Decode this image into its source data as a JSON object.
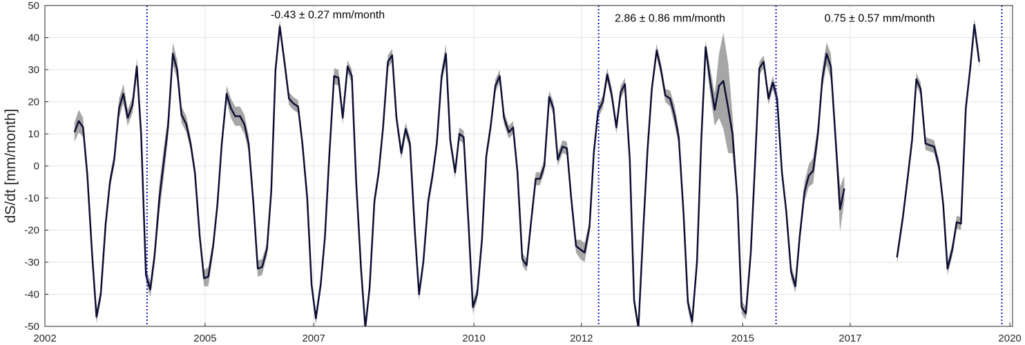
{
  "chart_data": {
    "type": "line",
    "xlabel": "",
    "ylabel": "dS/dt [mm/month]",
    "xlim": [
      2002,
      2020
    ],
    "ylim": [
      -50,
      50
    ],
    "x_ticks": [
      {
        "value": 2002.0,
        "label": "2002"
      },
      {
        "value": 2004.98,
        "label": "2005"
      },
      {
        "value": 2007.0,
        "label": "2007"
      },
      {
        "value": 2009.98,
        "label": "2010"
      },
      {
        "value": 2011.98,
        "label": "2012"
      },
      {
        "value": 2014.98,
        "label": "2015"
      },
      {
        "value": 2016.98,
        "label": "2017"
      },
      {
        "value": 2019.95,
        "label": "2020"
      }
    ],
    "y_ticks": [
      -50,
      -40,
      -30,
      -20,
      -10,
      0,
      10,
      20,
      30,
      40,
      50
    ],
    "grid": true,
    "legend": "none",
    "colors": {
      "line": "#0d0d33",
      "band": "#a6a6a6",
      "breakpoint": "#1010c8"
    },
    "breakpoints": [
      2003.9,
      2012.3,
      2015.6,
      2019.8
    ],
    "annotations": [
      {
        "text": "-0.43 ± 0.27 mm/month",
        "x": 2006.2,
        "y": 46
      },
      {
        "text": "2.86 ± 0.86 mm/month",
        "x": 2012.6,
        "y": 45
      },
      {
        "text": "0.75 ± 0.57 mm/month",
        "x": 2016.5,
        "y": 45
      }
    ],
    "series": [
      {
        "values": [
          [
            2002.55,
            10.5,
            3.0
          ],
          [
            2002.63,
            14.0,
            3.5
          ],
          [
            2002.71,
            12.0,
            3.0
          ],
          [
            2002.79,
            -3.0,
            2.0
          ],
          [
            2002.88,
            -28.0,
            2.0
          ],
          [
            2002.96,
            -47.0,
            2.0
          ],
          [
            2003.04,
            -40.0,
            2.0
          ],
          [
            2003.13,
            -18.0,
            2.0
          ],
          [
            2003.21,
            -5.0,
            2.0
          ],
          [
            2003.29,
            2.0,
            2.0
          ],
          [
            2003.38,
            18.0,
            3.0
          ],
          [
            2003.46,
            22.5,
            3.0
          ],
          [
            2003.54,
            15.0,
            2.5
          ],
          [
            2003.63,
            19.0,
            2.5
          ],
          [
            2003.71,
            31.0,
            2.5
          ],
          [
            2003.79,
            10.0,
            2.0
          ],
          [
            2003.88,
            -34.0,
            2.0
          ],
          [
            2003.96,
            -38.5,
            2.5
          ],
          [
            2004.04,
            -28.0,
            2.5
          ],
          [
            2004.13,
            -10.0,
            4.5
          ],
          [
            2004.21,
            1.0,
            4.5
          ],
          [
            2004.29,
            12.0,
            3.5
          ],
          [
            2004.38,
            35.0,
            3.5
          ],
          [
            2004.46,
            30.0,
            3.0
          ],
          [
            2004.54,
            16.0,
            2.5
          ],
          [
            2004.63,
            13.0,
            2.5
          ],
          [
            2004.71,
            7.0,
            2.0
          ],
          [
            2004.79,
            -2.0,
            2.0
          ],
          [
            2004.88,
            -22.0,
            2.0
          ],
          [
            2004.96,
            -35.0,
            2.5
          ],
          [
            2005.04,
            -34.5,
            3.0
          ],
          [
            2005.13,
            -25.0,
            2.0
          ],
          [
            2005.21,
            -12.0,
            2.0
          ],
          [
            2005.29,
            7.0,
            2.0
          ],
          [
            2005.38,
            22.5,
            2.5
          ],
          [
            2005.46,
            18.0,
            3.0
          ],
          [
            2005.54,
            15.5,
            3.0
          ],
          [
            2005.63,
            15.5,
            3.0
          ],
          [
            2005.71,
            13.0,
            3.0
          ],
          [
            2005.79,
            7.0,
            2.5
          ],
          [
            2005.88,
            -12.0,
            2.0
          ],
          [
            2005.96,
            -32.0,
            2.5
          ],
          [
            2006.04,
            -31.5,
            2.5
          ],
          [
            2006.13,
            -26.0,
            2.0
          ],
          [
            2006.21,
            -8.0,
            2.0
          ],
          [
            2006.29,
            30.0,
            2.0
          ],
          [
            2006.37,
            43.5,
            2.0
          ],
          [
            2006.46,
            32.0,
            2.0
          ],
          [
            2006.54,
            21.0,
            2.0
          ],
          [
            2006.62,
            19.5,
            2.0
          ],
          [
            2006.71,
            18.5,
            2.0
          ],
          [
            2006.79,
            7.0,
            2.0
          ],
          [
            2006.88,
            -10.0,
            2.0
          ],
          [
            2006.96,
            -37.0,
            2.0
          ],
          [
            2007.04,
            -47.5,
            2.0
          ],
          [
            2007.13,
            -37.0,
            2.0
          ],
          [
            2007.21,
            -22.0,
            2.0
          ],
          [
            2007.29,
            3.0,
            2.0
          ],
          [
            2007.38,
            28.0,
            2.5
          ],
          [
            2007.46,
            27.5,
            2.5
          ],
          [
            2007.54,
            15.0,
            2.0
          ],
          [
            2007.63,
            31.0,
            2.0
          ],
          [
            2007.71,
            28.0,
            2.0
          ],
          [
            2007.79,
            -5.0,
            2.0
          ],
          [
            2007.88,
            -32.0,
            2.0
          ],
          [
            2007.96,
            -50.5,
            2.0
          ],
          [
            2008.04,
            -38.0,
            2.0
          ],
          [
            2008.13,
            -11.0,
            2.0
          ],
          [
            2008.21,
            -2.0,
            2.0
          ],
          [
            2008.29,
            12.0,
            2.0
          ],
          [
            2008.38,
            32.5,
            2.0
          ],
          [
            2008.46,
            34.5,
            2.0
          ],
          [
            2008.54,
            15.0,
            2.0
          ],
          [
            2008.63,
            4.0,
            2.0
          ],
          [
            2008.71,
            11.5,
            2.0
          ],
          [
            2008.79,
            7.0,
            2.0
          ],
          [
            2008.88,
            -20.0,
            2.0
          ],
          [
            2008.96,
            -40.0,
            2.0
          ],
          [
            2009.04,
            -30.0,
            2.0
          ],
          [
            2009.13,
            -11.0,
            2.0
          ],
          [
            2009.21,
            -3.0,
            2.0
          ],
          [
            2009.29,
            7.0,
            2.0
          ],
          [
            2009.38,
            28.0,
            2.0
          ],
          [
            2009.46,
            35.0,
            3.0
          ],
          [
            2009.54,
            8.0,
            2.0
          ],
          [
            2009.63,
            -2.0,
            2.0
          ],
          [
            2009.71,
            10.0,
            2.0
          ],
          [
            2009.79,
            9.0,
            2.0
          ],
          [
            2009.88,
            -18.0,
            2.0
          ],
          [
            2009.96,
            -44.0,
            2.0
          ],
          [
            2010.04,
            -40.0,
            2.0
          ],
          [
            2010.13,
            -23.0,
            2.0
          ],
          [
            2010.21,
            3.0,
            2.0
          ],
          [
            2010.29,
            12.0,
            2.0
          ],
          [
            2010.38,
            25.0,
            2.0
          ],
          [
            2010.46,
            28.0,
            2.0
          ],
          [
            2010.54,
            15.0,
            2.0
          ],
          [
            2010.63,
            10.5,
            2.0
          ],
          [
            2010.71,
            12.0,
            2.0
          ],
          [
            2010.79,
            -2.0,
            2.0
          ],
          [
            2010.88,
            -29.0,
            2.0
          ],
          [
            2010.96,
            -31.0,
            2.0
          ],
          [
            2011.04,
            -18.0,
            2.0
          ],
          [
            2011.13,
            -4.0,
            2.0
          ],
          [
            2011.21,
            -4.0,
            2.0
          ],
          [
            2011.29,
            0.0,
            2.0
          ],
          [
            2011.38,
            21.5,
            2.0
          ],
          [
            2011.46,
            18.0,
            2.0
          ],
          [
            2011.54,
            2.0,
            2.0
          ],
          [
            2011.63,
            6.0,
            2.0
          ],
          [
            2011.71,
            5.5,
            2.0
          ],
          [
            2011.79,
            -10.0,
            2.0
          ],
          [
            2011.88,
            -25.0,
            2.0
          ],
          [
            2011.96,
            -26.0,
            3.0
          ],
          [
            2012.04,
            -27.0,
            3.0
          ],
          [
            2012.13,
            -19.0,
            2.0
          ],
          [
            2012.21,
            4.0,
            2.0
          ],
          [
            2012.29,
            17.0,
            2.0
          ],
          [
            2012.38,
            20.0,
            2.0
          ],
          [
            2012.46,
            28.5,
            2.0
          ],
          [
            2012.54,
            22.5,
            2.0
          ],
          [
            2012.63,
            12.0,
            2.0
          ],
          [
            2012.71,
            23.0,
            2.0
          ],
          [
            2012.79,
            25.5,
            2.0
          ],
          [
            2012.88,
            2.0,
            2.0
          ],
          [
            2012.96,
            -42.0,
            2.0
          ],
          [
            2013.04,
            -50.5,
            2.0
          ],
          [
            2013.13,
            -20.0,
            2.0
          ],
          [
            2013.21,
            5.0,
            2.0
          ],
          [
            2013.29,
            24.0,
            2.0
          ],
          [
            2013.38,
            36.0,
            2.0
          ],
          [
            2013.46,
            30.0,
            2.0
          ],
          [
            2013.54,
            22.0,
            2.0
          ],
          [
            2013.63,
            21.0,
            2.5
          ],
          [
            2013.71,
            16.0,
            3.0
          ],
          [
            2013.79,
            9.0,
            2.5
          ],
          [
            2013.88,
            -15.0,
            2.0
          ],
          [
            2013.96,
            -42.5,
            2.0
          ],
          [
            2014.04,
            -48.5,
            2.0
          ],
          [
            2014.13,
            -30.0,
            2.0
          ],
          [
            2014.21,
            8.0,
            2.0
          ],
          [
            2014.29,
            37.0,
            2.0
          ],
          [
            2014.37,
            27.0,
            4.0
          ],
          [
            2014.46,
            17.5,
            5.0
          ],
          [
            2014.54,
            25.0,
            10.0
          ],
          [
            2014.62,
            26.5,
            15.0
          ],
          [
            2014.71,
            18.0,
            14.0
          ],
          [
            2014.79,
            10.0,
            6.0
          ],
          [
            2014.88,
            -10.0,
            2.0
          ],
          [
            2014.96,
            -44.0,
            2.0
          ],
          [
            2015.04,
            -46.0,
            2.0
          ],
          [
            2015.13,
            -27.0,
            2.0
          ],
          [
            2015.21,
            1.0,
            2.0
          ],
          [
            2015.29,
            30.5,
            2.0
          ],
          [
            2015.37,
            32.5,
            2.0
          ],
          [
            2015.46,
            21.0,
            2.0
          ],
          [
            2015.54,
            26.0,
            2.0
          ],
          [
            2015.62,
            21.0,
            2.0
          ],
          [
            2015.71,
            -2.0,
            2.0
          ],
          [
            2015.79,
            -14.0,
            2.0
          ],
          [
            2015.88,
            -33.0,
            2.0
          ],
          [
            2015.96,
            -37.5,
            2.0
          ],
          [
            2016.04,
            -22.0,
            2.0
          ],
          [
            2016.13,
            -8.0,
            3.0
          ],
          [
            2016.21,
            -3.0,
            3.5
          ],
          [
            2016.29,
            -1.5,
            4.0
          ],
          [
            2016.38,
            10.0,
            3.0
          ],
          [
            2016.46,
            27.0,
            3.0
          ],
          [
            2016.54,
            35.0,
            3.5
          ],
          [
            2016.62,
            31.0,
            4.0
          ],
          [
            2016.71,
            8.0,
            3.0
          ],
          [
            2016.79,
            -13.5,
            7.0
          ],
          [
            2016.87,
            -7.0,
            4.0
          ],
          null,
          [
            2017.85,
            -28.5,
            2.0
          ],
          [
            2017.96,
            -16.0,
            2.0
          ],
          [
            2018.04,
            -5.0,
            2.0
          ],
          [
            2018.13,
            8.0,
            2.0
          ],
          [
            2018.21,
            27.0,
            2.0
          ],
          [
            2018.29,
            24.0,
            2.0
          ],
          [
            2018.38,
            7.0,
            2.0
          ],
          [
            2018.46,
            6.5,
            2.0
          ],
          [
            2018.54,
            6.0,
            2.0
          ],
          [
            2018.63,
            0.0,
            2.0
          ],
          [
            2018.71,
            -12.0,
            2.0
          ],
          [
            2018.79,
            -32.0,
            2.0
          ],
          [
            2018.88,
            -26.0,
            2.0
          ],
          [
            2018.96,
            -17.5,
            2.0
          ],
          [
            2019.04,
            -18.0,
            2.0
          ],
          [
            2019.13,
            18.0,
            2.0
          ],
          [
            2019.21,
            30.0,
            2.0
          ],
          [
            2019.29,
            44.0,
            2.0
          ],
          [
            2019.38,
            32.5,
            2.0
          ]
        ]
      }
    ]
  }
}
